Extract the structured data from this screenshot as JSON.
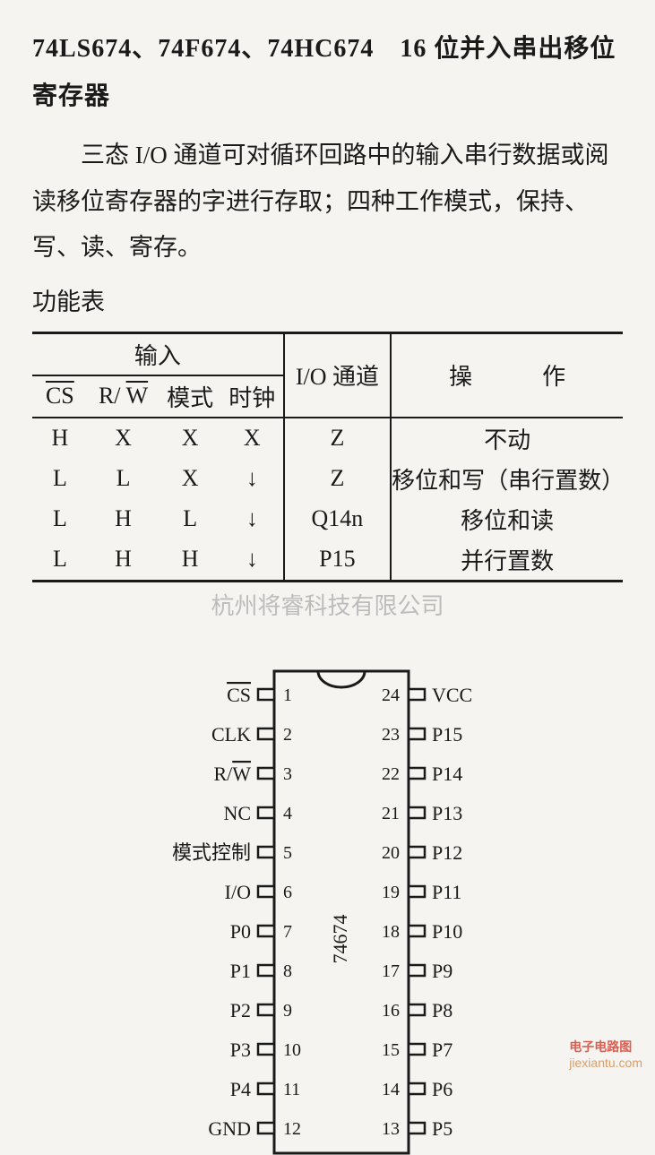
{
  "title": "74LS674、74F674、74HC674　16 位并入串出移位寄存器",
  "description": "三态 I/O 通道可对循环回路中的输入串行数据或阅读移位寄存器的字进行存取；四种工作模式，保持、写、读、寄存。",
  "func_label": "功能表",
  "table": {
    "header_group_input": "输入",
    "header_io": "I/O 通道",
    "header_op": "操　　　作",
    "sub_cs": "CS",
    "sub_rw_r": "R/",
    "sub_rw_w": "W",
    "sub_mode": "模式",
    "sub_clk": "时钟",
    "rows": [
      {
        "cs": "H",
        "rw": "X",
        "mode": "X",
        "clk": "X",
        "io": "Z",
        "op": "不动"
      },
      {
        "cs": "L",
        "rw": "L",
        "mode": "X",
        "clk": "↓",
        "io": "Z",
        "op": "移位和写（串行置数）"
      },
      {
        "cs": "L",
        "rw": "H",
        "mode": "L",
        "clk": "↓",
        "io": "Q14n",
        "op": "移位和读"
      },
      {
        "cs": "L",
        "rw": "H",
        "mode": "H",
        "clk": "↓",
        "io": "P15",
        "op": "并行置数"
      }
    ]
  },
  "watermark": "杭州将睿科技有限公司",
  "chip": {
    "part": "74674",
    "pin_count": 24,
    "body_color": "#f5f4f0",
    "outline_color": "#1a1a1a",
    "left_pins": [
      {
        "num": "1",
        "label": "CS",
        "overline": true
      },
      {
        "num": "2",
        "label": "CLK",
        "overline": false
      },
      {
        "num": "3",
        "label": "R/W",
        "overline": false,
        "special_rw": true
      },
      {
        "num": "4",
        "label": "NC",
        "overline": false
      },
      {
        "num": "5",
        "label": "模式控制",
        "overline": false
      },
      {
        "num": "6",
        "label": "I/O",
        "overline": false
      },
      {
        "num": "7",
        "label": "P0",
        "overline": false
      },
      {
        "num": "8",
        "label": "P1",
        "overline": false
      },
      {
        "num": "9",
        "label": "P2",
        "overline": false
      },
      {
        "num": "10",
        "label": "P3",
        "overline": false
      },
      {
        "num": "11",
        "label": "P4",
        "overline": false
      },
      {
        "num": "12",
        "label": "GND",
        "overline": false
      }
    ],
    "right_pins": [
      {
        "num": "24",
        "label": "VCC"
      },
      {
        "num": "23",
        "label": "P15"
      },
      {
        "num": "22",
        "label": "P14"
      },
      {
        "num": "21",
        "label": "P13"
      },
      {
        "num": "20",
        "label": "P12"
      },
      {
        "num": "19",
        "label": "P11"
      },
      {
        "num": "18",
        "label": "P10"
      },
      {
        "num": "17",
        "label": "P9"
      },
      {
        "num": "16",
        "label": "P8"
      },
      {
        "num": "15",
        "label": "P7"
      },
      {
        "num": "14",
        "label": "P6"
      },
      {
        "num": "13",
        "label": "P5"
      }
    ]
  },
  "footer_brand": "电子电路图",
  "footer_site": "jiexiantu.com"
}
